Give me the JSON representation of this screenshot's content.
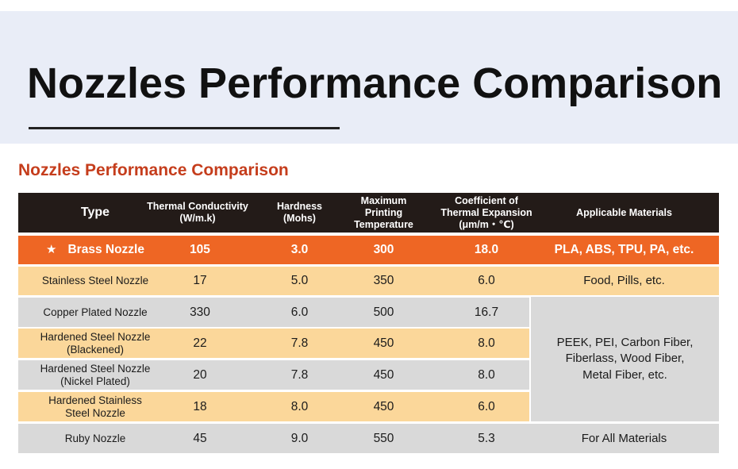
{
  "page_title": "Nozzles Performance Comparison",
  "table_title": "Nozzles Performance Comparison",
  "colors": {
    "header_bg": "#231b18",
    "highlight_bg": "#ee6624",
    "tan_row_bg": "#fbd79a",
    "gray_row_bg": "#d9d9d9",
    "subtitle_color": "#c53d1c"
  },
  "headers": {
    "type": "Type",
    "thermal": "Thermal Conductivity\n(W/m.k)",
    "hardness": "Hardness\n(Mohs)",
    "max_temp": "Maximum\nPrinting\nTemperature",
    "expansion": "Coefficient of\nThermal Expansion\n(μm/m・℃)",
    "materials": "Applicable Materials"
  },
  "highlight_icon": "star-icon",
  "highlight_mark": "★",
  "rows": [
    {
      "type": "Brass Nozzle",
      "thermal": "105",
      "hardness": "3.0",
      "max_temp": "300",
      "expansion": "18.0",
      "materials": "PLA, ABS, TPU, PA, etc."
    },
    {
      "type": "Stainless Steel Nozzle",
      "thermal": "17",
      "hardness": "5.0",
      "max_temp": "350",
      "expansion": "6.0",
      "materials": "Food, Pills, etc."
    },
    {
      "type": "Copper Plated Nozzle",
      "thermal": "330",
      "hardness": "6.0",
      "max_temp": "500",
      "expansion": "16.7"
    },
    {
      "type": "Hardened Steel Nozzle\n(Blackened)",
      "thermal": "22",
      "hardness": "7.8",
      "max_temp": "450",
      "expansion": "8.0"
    },
    {
      "type": "Hardened Steel Nozzle\n(Nickel Plated)",
      "thermal": "20",
      "hardness": "7.8",
      "max_temp": "450",
      "expansion": "8.0"
    },
    {
      "type": "Hardened Stainless\nSteel Nozzle",
      "thermal": "18",
      "hardness": "8.0",
      "max_temp": "450",
      "expansion": "6.0"
    },
    {
      "type": "Ruby Nozzle",
      "thermal": "45",
      "hardness": "9.0",
      "max_temp": "550",
      "expansion": "5.3",
      "materials": "For All Materials"
    }
  ],
  "merged_materials": "PEEK, PEI, Carbon Fiber,\nFiberlass, Wood Fiber,\nMetal Fiber, etc."
}
